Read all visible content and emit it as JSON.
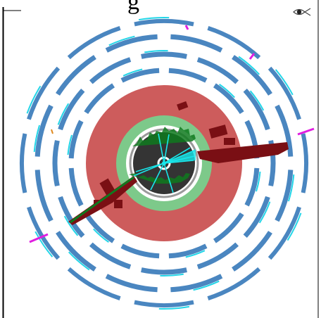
{
  "header": {
    "title_fragment": "g"
  },
  "icons": {
    "logo": "eye-fish-logo"
  },
  "colors": {
    "muon_blue": "#4a86c0",
    "muon_cyan": "#23d6e8",
    "hcal_red": "#cd5c5c",
    "ecal_green": "#7dc98a",
    "tracker_dark": "#343434",
    "energy_deposit": "#7a0f14",
    "track_green": "#0f7a1f",
    "track_cyan": "#18e6ea",
    "missing_energy": "#e01ee0"
  }
}
